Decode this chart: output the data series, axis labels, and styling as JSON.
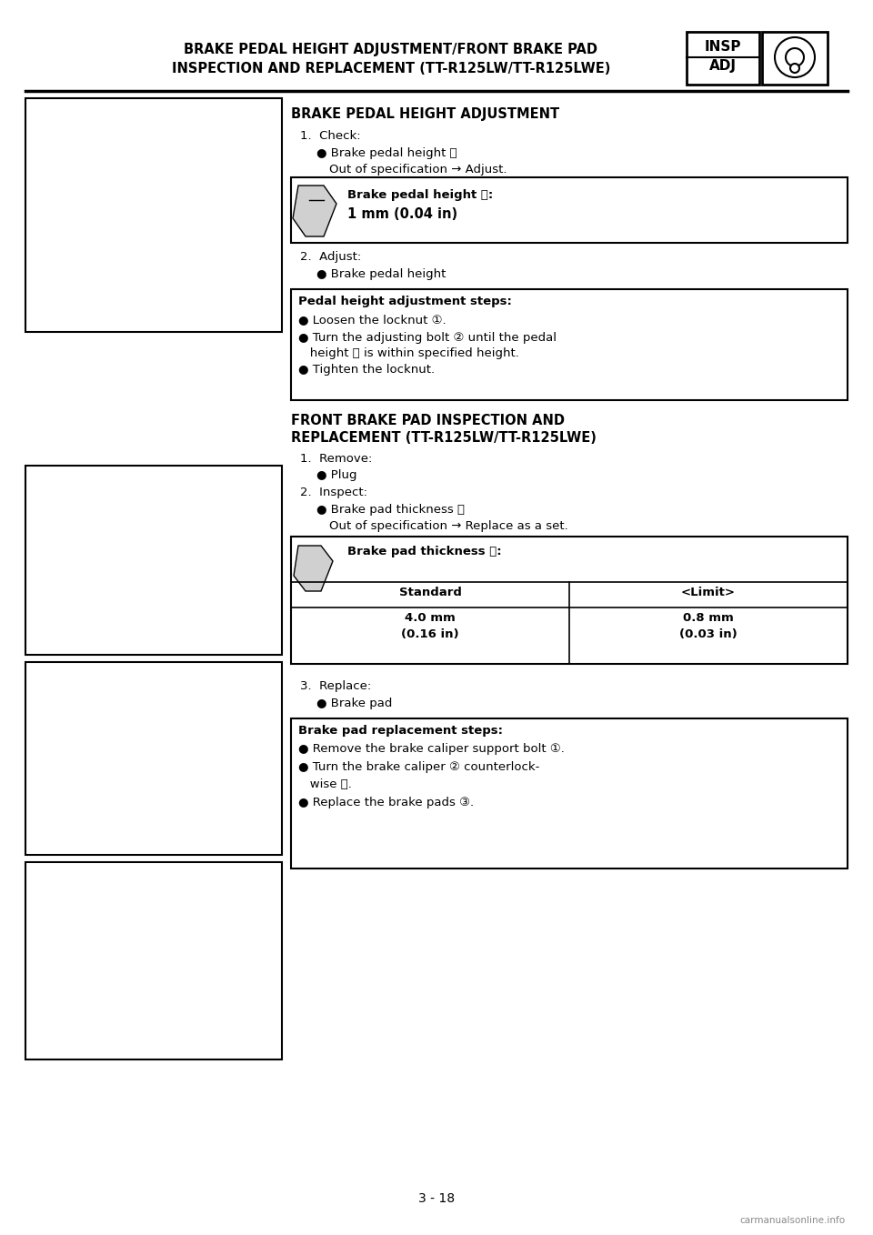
{
  "page_bg": "#ffffff",
  "header_title_line1": "BRAKE PEDAL HEIGHT ADJUSTMENT/FRONT BRAKE PAD",
  "header_title_line2": "INSPECTION AND REPLACEMENT (TT-R125LW/TT-R125LWE)",
  "page_number": "3 - 18",
  "watermark": "carmanualsonline.info",
  "section1_title": "BRAKE PEDAL HEIGHT ADJUSTMENT",
  "box1_line1": "Brake pedal height ⓐ:",
  "box1_line2": "1 mm (0.04 in)",
  "box2_title": "Pedal height adjustment steps:",
  "box2_b1": "● Loosen the locknut ①.",
  "box2_b2a": "● Turn the adjusting bolt ② until the pedal",
  "box2_b2b": "   height ⓐ is within specified height.",
  "box2_b3": "● Tighten the locknut.",
  "section2_title_line1": "FRONT BRAKE PAD INSPECTION AND",
  "section2_title_line2": "REPLACEMENT (TT-R125LW/TT-R125LWE)",
  "box3_line1": "Brake pad thickness ⓐ:",
  "box3_col1_header": "Standard",
  "box3_col2_header": "<Limit>",
  "box3_col1_val1": "4.0 mm",
  "box3_col1_val2": "(0.16 in)",
  "box3_col2_val1": "0.8 mm",
  "box3_col2_val2": "(0.03 in)",
  "box4_title": "Brake pad replacement steps:",
  "box4_b1": "● Remove the brake caliper support bolt ①.",
  "box4_b2a": "● Turn the brake caliper ② counterlock-",
  "box4_b2b": "   wise ⓐ.",
  "box4_b3": "● Replace the brake pads ③."
}
